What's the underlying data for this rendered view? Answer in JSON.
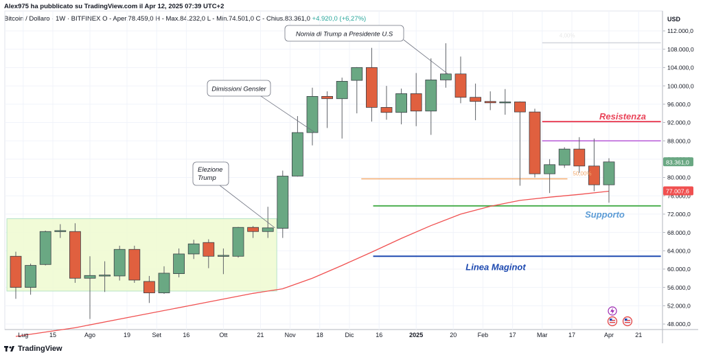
{
  "header": {
    "publisher_line": "Alex975 ha pubblicato su TradingView.com il Apr 12, 2025 07:39 UTC+2",
    "symbol": "Bitcoin / Dollaro · 1W · BITFINEX",
    "ohlc_open": "O - Aper.78.459,0",
    "ohlc_high": "H - Max.84.232,0",
    "ohlc_low": "L - Min.74.501,0",
    "ohlc_close": "C - Chius.83.361,0",
    "change": "+4.920,0 (+6,27%)"
  },
  "footer": {
    "brand": "TradingView"
  },
  "axis": {
    "currency": "USD"
  },
  "colors": {
    "up": "#6aa883",
    "down": "#e0603f",
    "ma": "#f05050",
    "resistance": "#e94358",
    "support": "#4caf50",
    "maginot": "#1d49b0",
    "fib": "#f2a96e",
    "purple": "#c77fe0",
    "zone": "#eefad0"
  },
  "chart_data": {
    "type": "candlestick",
    "title": "",
    "ylabel": "USD",
    "ylim": [
      45000,
      115000
    ],
    "y_ticks": [
      48000,
      52000,
      56000,
      60000,
      64000,
      68000,
      72000,
      76000,
      80000,
      84000,
      88000,
      92000,
      96000,
      100000,
      104000,
      108000,
      112000
    ],
    "y_tick_labels": [
      "48.000,0",
      "52.000,0",
      "56.000,0",
      "60.000,0",
      "64.000,0",
      "68.000,0",
      "72.000,0",
      "76.000,0",
      "80.000,0",
      "84.000,0",
      "88.000,0",
      "92.000,0",
      "96.000,0",
      "100.000,0",
      "104.000,0",
      "108.000,0",
      "112.000,0"
    ],
    "x_ticks": [
      {
        "label": "Lug",
        "idx": 0.5,
        "bold": false
      },
      {
        "label": "15",
        "idx": 2.5,
        "bold": false
      },
      {
        "label": "Ago",
        "idx": 5.0,
        "bold": false
      },
      {
        "label": "19",
        "idx": 7.5,
        "bold": false
      },
      {
        "label": "Set",
        "idx": 9.5,
        "bold": false
      },
      {
        "label": "16",
        "idx": 11.5,
        "bold": false
      },
      {
        "label": "Ott",
        "idx": 14.0,
        "bold": false
      },
      {
        "label": "21",
        "idx": 16.5,
        "bold": false
      },
      {
        "label": "Nov",
        "idx": 18.5,
        "bold": false
      },
      {
        "label": "18",
        "idx": 20.5,
        "bold": false
      },
      {
        "label": "Dic",
        "idx": 22.5,
        "bold": false
      },
      {
        "label": "16",
        "idx": 24.5,
        "bold": false
      },
      {
        "label": "2025",
        "idx": 27.0,
        "bold": true
      },
      {
        "label": "20",
        "idx": 29.5,
        "bold": false
      },
      {
        "label": "Feb",
        "idx": 31.5,
        "bold": false
      },
      {
        "label": "17",
        "idx": 33.5,
        "bold": false
      },
      {
        "label": "Mar",
        "idx": 35.5,
        "bold": false
      },
      {
        "label": "17",
        "idx": 37.5,
        "bold": false
      },
      {
        "label": "Apr",
        "idx": 40.0,
        "bold": false
      },
      {
        "label": "21",
        "idx": 42.0,
        "bold": false
      }
    ],
    "candles": [
      {
        "o": 62800,
        "h": 63800,
        "l": 53500,
        "c": 56000
      },
      {
        "o": 56000,
        "h": 61200,
        "l": 54400,
        "c": 60800
      },
      {
        "o": 61000,
        "h": 68400,
        "l": 60800,
        "c": 68200
      },
      {
        "o": 68200,
        "h": 69800,
        "l": 66800,
        "c": 68400
      },
      {
        "o": 68200,
        "h": 70000,
        "l": 57000,
        "c": 58000
      },
      {
        "o": 58000,
        "h": 62800,
        "l": 49100,
        "c": 58600
      },
      {
        "o": 58500,
        "h": 61700,
        "l": 55000,
        "c": 58700
      },
      {
        "o": 58500,
        "h": 65100,
        "l": 57500,
        "c": 64300
      },
      {
        "o": 64300,
        "h": 65100,
        "l": 57000,
        "c": 57600
      },
      {
        "o": 57300,
        "h": 58500,
        "l": 52600,
        "c": 54800
      },
      {
        "o": 54800,
        "h": 60600,
        "l": 54600,
        "c": 59100
      },
      {
        "o": 59000,
        "h": 64500,
        "l": 58200,
        "c": 63300
      },
      {
        "o": 63300,
        "h": 66400,
        "l": 62200,
        "c": 65500
      },
      {
        "o": 65800,
        "h": 66500,
        "l": 60200,
        "c": 62800
      },
      {
        "o": 62900,
        "h": 64500,
        "l": 58900,
        "c": 63000
      },
      {
        "o": 62800,
        "h": 69200,
        "l": 62500,
        "c": 69100
      },
      {
        "o": 69100,
        "h": 69400,
        "l": 66800,
        "c": 68200
      },
      {
        "o": 68200,
        "h": 73600,
        "l": 66800,
        "c": 69000
      },
      {
        "o": 68900,
        "h": 81500,
        "l": 66800,
        "c": 80300
      },
      {
        "o": 80300,
        "h": 93400,
        "l": 80200,
        "c": 89800
      },
      {
        "o": 89800,
        "h": 99600,
        "l": 87000,
        "c": 97700
      },
      {
        "o": 97700,
        "h": 98800,
        "l": 90800,
        "c": 97200
      },
      {
        "o": 97200,
        "h": 101800,
        "l": 88500,
        "c": 101000
      },
      {
        "o": 101200,
        "h": 104100,
        "l": 94000,
        "c": 104000
      },
      {
        "o": 104000,
        "h": 108300,
        "l": 92200,
        "c": 95300
      },
      {
        "o": 95300,
        "h": 100000,
        "l": 92600,
        "c": 94200
      },
      {
        "o": 94200,
        "h": 99400,
        "l": 91600,
        "c": 98300
      },
      {
        "o": 98300,
        "h": 102800,
        "l": 91200,
        "c": 94500
      },
      {
        "o": 94500,
        "h": 106000,
        "l": 89300,
        "c": 101300
      },
      {
        "o": 101300,
        "h": 109300,
        "l": 99600,
        "c": 102600
      },
      {
        "o": 102600,
        "h": 106400,
        "l": 96200,
        "c": 97500
      },
      {
        "o": 97500,
        "h": 100500,
        "l": 92500,
        "c": 96600
      },
      {
        "o": 96600,
        "h": 98800,
        "l": 94700,
        "c": 96300
      },
      {
        "o": 96300,
        "h": 99300,
        "l": 93700,
        "c": 96500
      },
      {
        "o": 96500,
        "h": 96600,
        "l": 78200,
        "c": 94300
      },
      {
        "o": 94300,
        "h": 95000,
        "l": 80000,
        "c": 80800
      },
      {
        "o": 80800,
        "h": 84000,
        "l": 76600,
        "c": 82800
      },
      {
        "o": 82700,
        "h": 86600,
        "l": 82100,
        "c": 86200
      },
      {
        "o": 86200,
        "h": 88800,
        "l": 81000,
        "c": 82500
      },
      {
        "o": 82500,
        "h": 88500,
        "l": 77000,
        "c": 78400
      },
      {
        "o": 78400,
        "h": 84200,
        "l": 74500,
        "c": 83400
      }
    ],
    "moving_average": {
      "name": "",
      "values": [
        [
          0,
          45300
        ],
        [
          4,
          47200
        ],
        [
          8,
          49700
        ],
        [
          12,
          52200
        ],
        [
          16,
          54700
        ],
        [
          18,
          55700
        ],
        [
          20,
          58000
        ],
        [
          22,
          60800
        ],
        [
          24,
          63700
        ],
        [
          26,
          66700
        ],
        [
          28,
          69500
        ],
        [
          30,
          72000
        ],
        [
          32,
          73700
        ],
        [
          34,
          75000
        ],
        [
          36,
          75700
        ],
        [
          38,
          76300
        ],
        [
          40,
          77000
        ]
      ],
      "last_label": "77.007,6"
    },
    "last_price_label": "83.361,0",
    "levels": [
      {
        "name": "Resistenza",
        "value": 92200,
        "from_idx": 35.5,
        "to_idx": 43.5,
        "type": "resistance",
        "label": "Resistenza"
      },
      {
        "name": "purple",
        "value": 88000,
        "from_idx": 35.5,
        "to_idx": 43.5,
        "type": "purple",
        "label": ""
      },
      {
        "name": "fib",
        "value": 79700,
        "from_idx": 23.3,
        "to_idx": 37.2,
        "type": "fib",
        "label": "50,00%"
      },
      {
        "name": "Supporto",
        "value": 73800,
        "from_idx": 24.1,
        "to_idx": 43.5,
        "type": "support",
        "label": "Supporto"
      },
      {
        "name": "Linea Maginot",
        "value": 62800,
        "from_idx": 24.1,
        "to_idx": 43.5,
        "type": "maginot",
        "label": "Linea Maginot"
      }
    ],
    "faint_level": {
      "value": 109400,
      "from_idx": 35.5,
      "to_idx": 43.5,
      "label": "4,00%"
    },
    "zone": {
      "from_idx": -0.6,
      "to_idx": 17.6,
      "low": 55200,
      "high": 71000
    },
    "callouts": [
      {
        "text": "Nomia di Trump a Presidente U.S",
        "anchor_idx": 29.0,
        "anchor_value": 102600
      },
      {
        "text": "Dimissioni Gensler",
        "anchor_idx": 20.0,
        "anchor_value": 89800
      },
      {
        "text": "Elezione Trump",
        "anchor_idx": 17.8,
        "anchor_value": 69000
      }
    ]
  }
}
